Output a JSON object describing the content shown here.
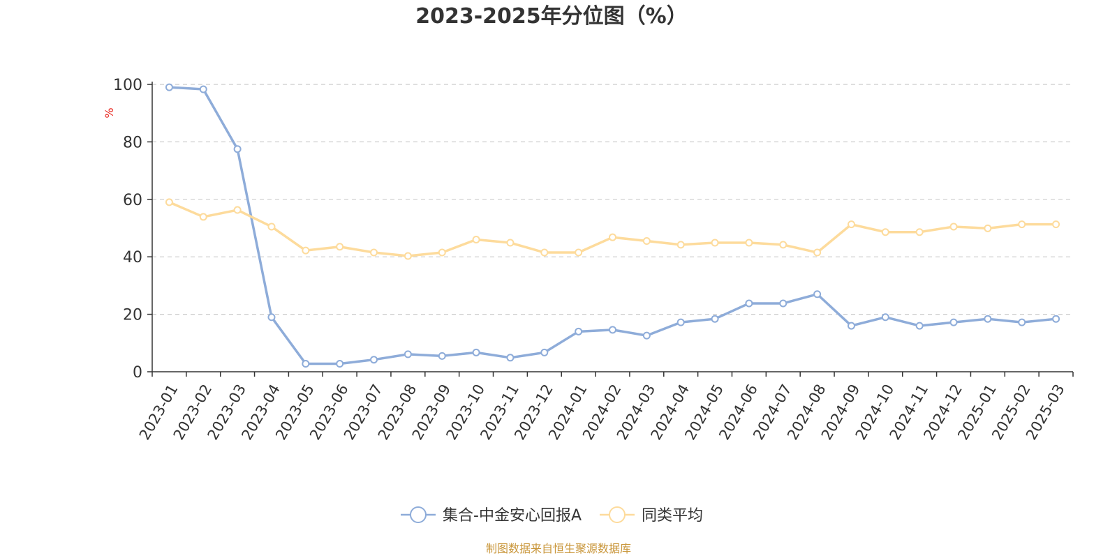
{
  "chart_data": {
    "type": "line",
    "title": "2023-2025年分位图（%）",
    "y_unit_label": "%",
    "ylim": [
      0,
      100
    ],
    "y_ticks": [
      "0",
      "20",
      "40",
      "60",
      "80",
      "100"
    ],
    "grid": true,
    "legend_position": "bottom",
    "categories": [
      "2023-01",
      "2023-02",
      "2023-03",
      "2023-04",
      "2023-05",
      "2023-06",
      "2023-07",
      "2023-08",
      "2023-09",
      "2023-10",
      "2023-11",
      "2023-12",
      "2024-01",
      "2024-02",
      "2024-03",
      "2024-04",
      "2024-05",
      "2024-06",
      "2024-07",
      "2024-08",
      "2024-09",
      "2024-10",
      "2024-11",
      "2024-12",
      "2025-01",
      "2025-02",
      "2025-03"
    ],
    "series": [
      {
        "name": "集合-中金安心回报A",
        "color": "#8eacd9",
        "values": [
          99,
          98.3,
          77.5,
          19,
          2.8,
          2.8,
          4.2,
          6.1,
          5.5,
          6.7,
          4.9,
          6.7,
          14,
          14.6,
          12.6,
          17.2,
          18.4,
          23.8,
          23.8,
          27,
          16,
          19,
          16,
          17.2,
          18.4,
          17.2,
          18.4
        ]
      },
      {
        "name": "同类平均",
        "color": "#fddb9c",
        "values": [
          59,
          53.9,
          56.3,
          50.5,
          42.2,
          43.5,
          41.5,
          40.3,
          41.5,
          46,
          44.9,
          41.5,
          41.5,
          46.8,
          45.5,
          44.2,
          44.9,
          44.9,
          44.2,
          41.5,
          51.3,
          48.6,
          48.6,
          50.5,
          49.9,
          51.3,
          51.3
        ]
      }
    ],
    "source": "制图数据来自恒生聚源数据库"
  },
  "colors": {
    "axis": "#333333",
    "grid": "#cccccc",
    "unit": "#e8251e",
    "source": "#c9963a"
  }
}
